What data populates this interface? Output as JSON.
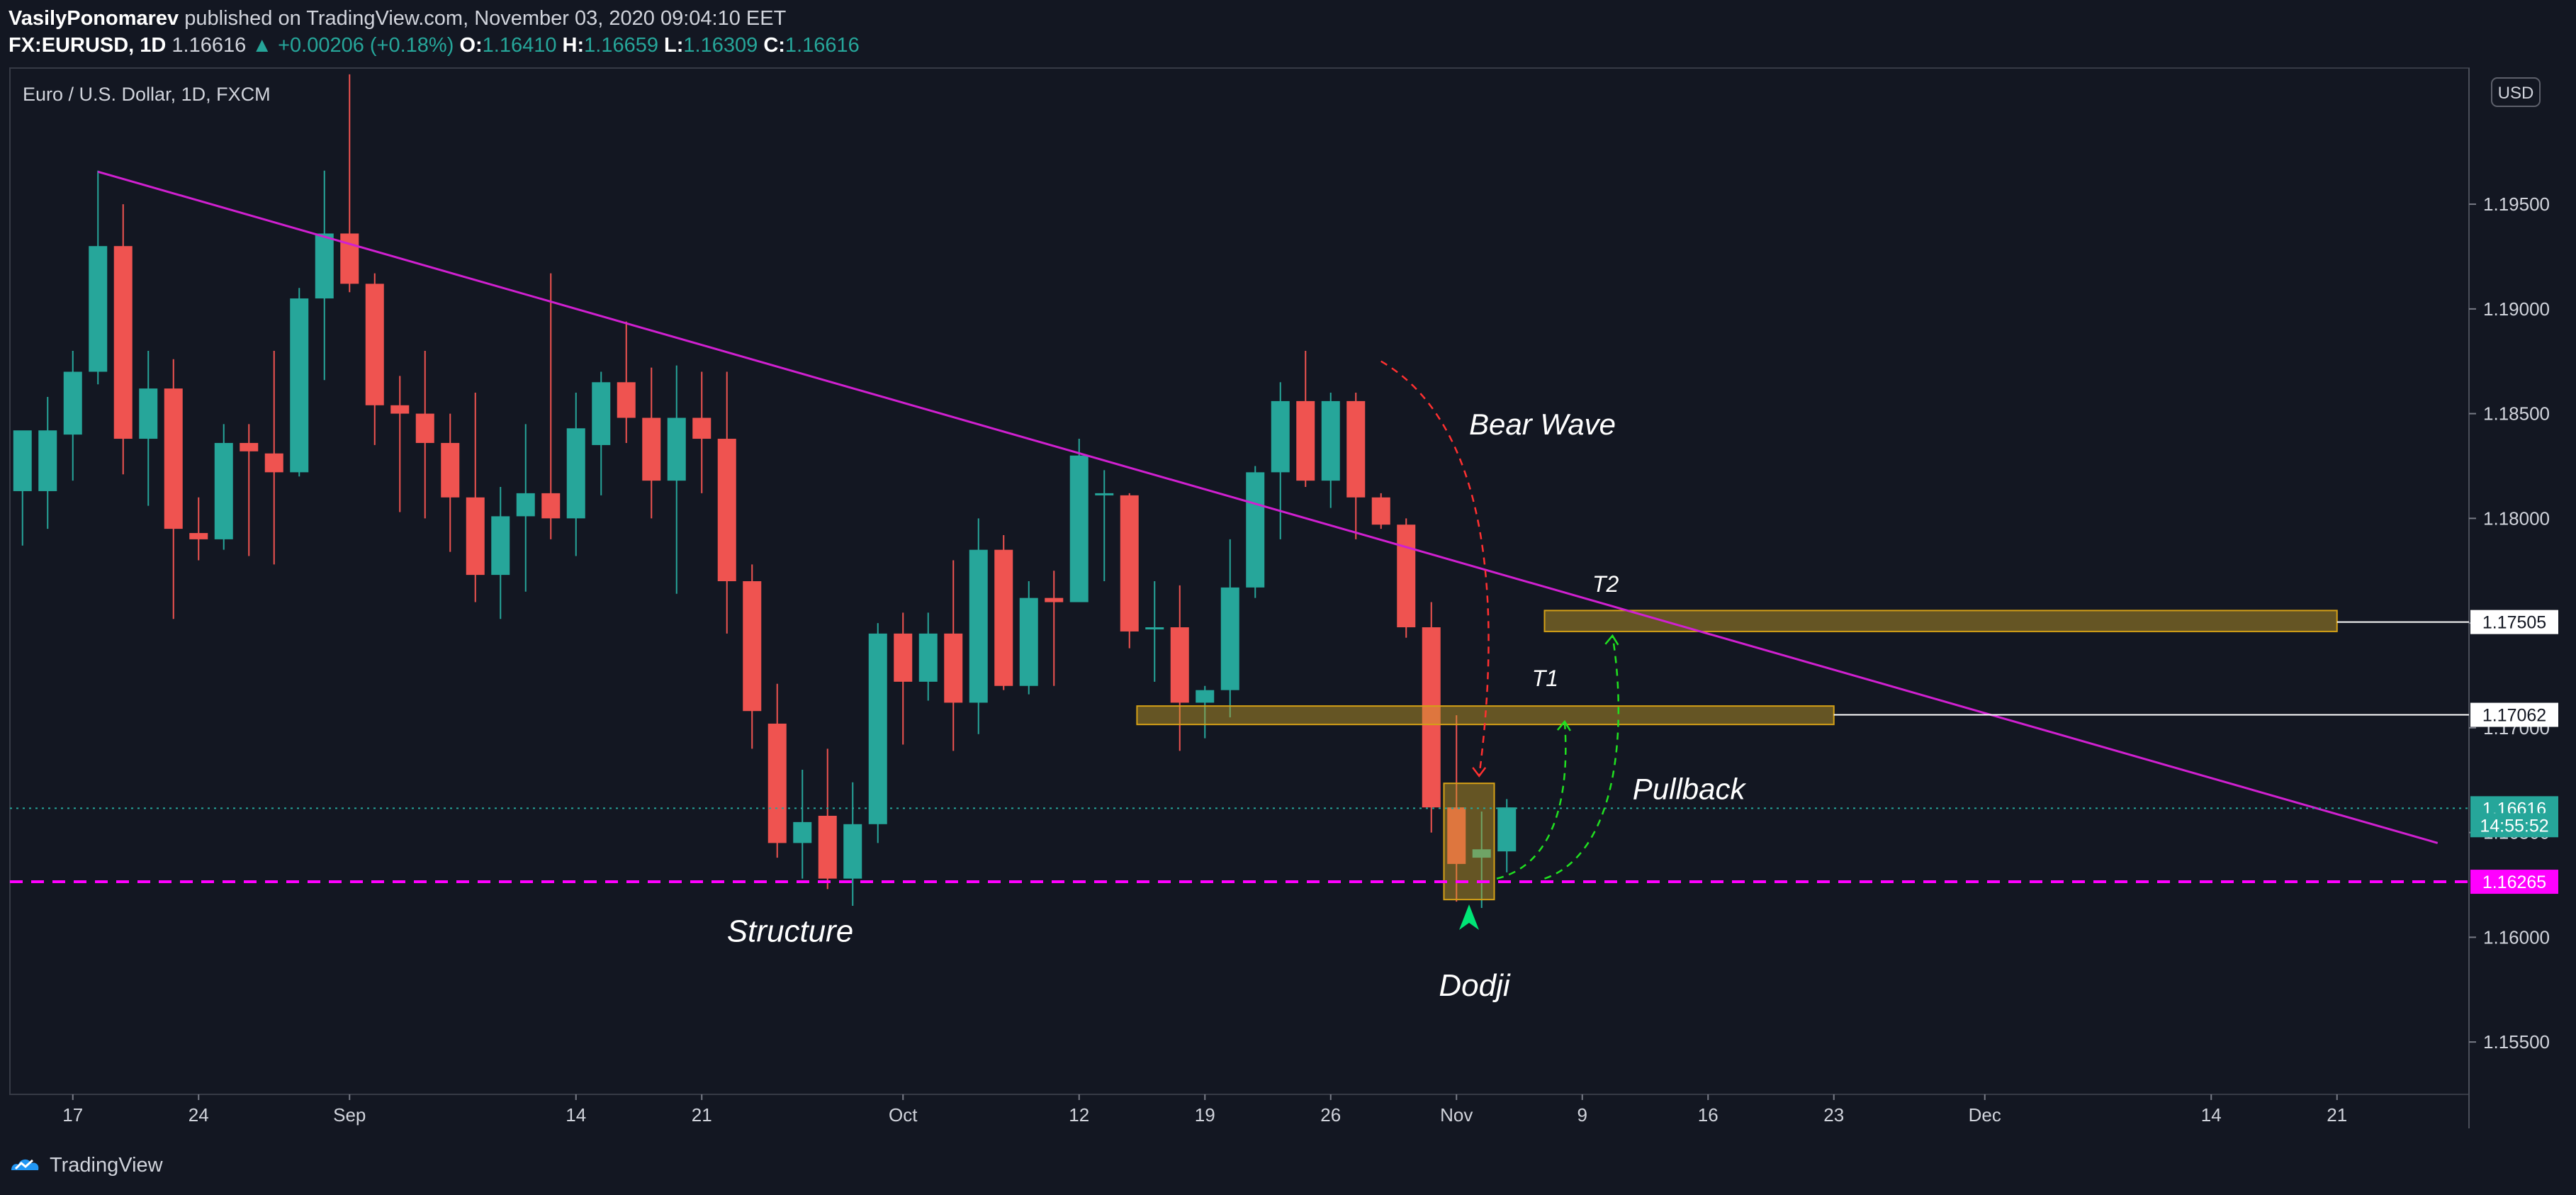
{
  "header": {
    "author": "VasilyPonomarev",
    "published_text": "published on TradingView.com, November 03, 2020 09:04:10 EET",
    "symbol": "FX:EURUSD, 1D",
    "last": "1.16616",
    "change": "▲ +0.00206 (+0.18%)",
    "o_label": "O:",
    "o_value": "1.16410",
    "h_label": "H:",
    "h_value": "1.16659",
    "l_label": "L:",
    "l_value": "1.16309",
    "c_label": "C:",
    "c_value": "1.16616"
  },
  "footer": {
    "brand": "TradingView"
  },
  "colors": {
    "background": "#131722",
    "up": "#26a69a",
    "down": "#ef5350",
    "trendline": "#d020d0",
    "support": "#ff00ff",
    "zone": "#c9a227",
    "bear_arrow": "#ff3030",
    "pullback_arrow": "#20e020",
    "dodji_arrow": "#00e676"
  },
  "chart_data": {
    "type": "candlestick",
    "title": "Euro / U.S. Dollar, 1D, FXCM",
    "currency": "USD",
    "ylim": [
      1.1525,
      1.2015
    ],
    "y_ticks": [
      "1.15500",
      "1.16000",
      "1.16500",
      "1.17000",
      "1.17500",
      "1.18000",
      "1.18500",
      "1.19000",
      "1.19500"
    ],
    "x_ticks": [
      {
        "i": 2,
        "label": "17"
      },
      {
        "i": 7,
        "label": "24"
      },
      {
        "i": 13,
        "label": "Sep"
      },
      {
        "i": 22,
        "label": "14"
      },
      {
        "i": 27,
        "label": "21"
      },
      {
        "i": 35,
        "label": "Oct"
      },
      {
        "i": 42,
        "label": "12"
      },
      {
        "i": 47,
        "label": "19"
      },
      {
        "i": 52,
        "label": "26"
      },
      {
        "i": 57,
        "label": "Nov"
      },
      {
        "i": 62,
        "label": "9"
      },
      {
        "i": 67,
        "label": "16"
      },
      {
        "i": 72,
        "label": "23"
      },
      {
        "i": 78,
        "label": "Dec"
      },
      {
        "i": 87,
        "label": "14"
      },
      {
        "i": 92,
        "label": "21"
      }
    ],
    "candles": [
      {
        "o": 1.1813,
        "h": 1.1841,
        "l": 1.1787,
        "c": 1.1842
      },
      {
        "o": 1.1813,
        "h": 1.1858,
        "l": 1.1795,
        "c": 1.1842
      },
      {
        "o": 1.184,
        "h": 1.188,
        "l": 1.1818,
        "c": 1.187
      },
      {
        "o": 1.187,
        "h": 1.1966,
        "l": 1.1864,
        "c": 1.193
      },
      {
        "o": 1.193,
        "h": 1.195,
        "l": 1.1821,
        "c": 1.1838
      },
      {
        "o": 1.1838,
        "h": 1.188,
        "l": 1.1806,
        "c": 1.1862
      },
      {
        "o": 1.1862,
        "h": 1.1876,
        "l": 1.1752,
        "c": 1.1795
      },
      {
        "o": 1.1793,
        "h": 1.181,
        "l": 1.178,
        "c": 1.179
      },
      {
        "o": 1.179,
        "h": 1.1845,
        "l": 1.1785,
        "c": 1.1836
      },
      {
        "o": 1.1836,
        "h": 1.1845,
        "l": 1.1782,
        "c": 1.1832
      },
      {
        "o": 1.1831,
        "h": 1.188,
        "l": 1.1778,
        "c": 1.1822
      },
      {
        "o": 1.1822,
        "h": 1.191,
        "l": 1.182,
        "c": 1.1905
      },
      {
        "o": 1.1905,
        "h": 1.1966,
        "l": 1.1866,
        "c": 1.1936
      },
      {
        "o": 1.1936,
        "h": 1.2012,
        "l": 1.1908,
        "c": 1.1912
      },
      {
        "o": 1.1912,
        "h": 1.1917,
        "l": 1.1835,
        "c": 1.1854
      },
      {
        "o": 1.1854,
        "h": 1.1868,
        "l": 1.1803,
        "c": 1.185
      },
      {
        "o": 1.185,
        "h": 1.188,
        "l": 1.18,
        "c": 1.1836
      },
      {
        "o": 1.1836,
        "h": 1.185,
        "l": 1.1784,
        "c": 1.181
      },
      {
        "o": 1.181,
        "h": 1.186,
        "l": 1.176,
        "c": 1.1773
      },
      {
        "o": 1.1773,
        "h": 1.1815,
        "l": 1.1752,
        "c": 1.1801
      },
      {
        "o": 1.1801,
        "h": 1.1845,
        "l": 1.1765,
        "c": 1.1812
      },
      {
        "o": 1.1812,
        "h": 1.1917,
        "l": 1.179,
        "c": 1.18
      },
      {
        "o": 1.18,
        "h": 1.186,
        "l": 1.1782,
        "c": 1.1843
      },
      {
        "o": 1.1835,
        "h": 1.187,
        "l": 1.1811,
        "c": 1.1865
      },
      {
        "o": 1.1865,
        "h": 1.1894,
        "l": 1.1836,
        "c": 1.1848
      },
      {
        "o": 1.1848,
        "h": 1.1872,
        "l": 1.18,
        "c": 1.1818
      },
      {
        "o": 1.1818,
        "h": 1.1873,
        "l": 1.1764,
        "c": 1.1848
      },
      {
        "o": 1.1848,
        "h": 1.187,
        "l": 1.1812,
        "c": 1.1838
      },
      {
        "o": 1.1838,
        "h": 1.187,
        "l": 1.1745,
        "c": 1.177
      },
      {
        "o": 1.177,
        "h": 1.1778,
        "l": 1.169,
        "c": 1.1708
      },
      {
        "o": 1.1702,
        "h": 1.1721,
        "l": 1.1638,
        "c": 1.1645
      },
      {
        "o": 1.1645,
        "h": 1.168,
        "l": 1.1628,
        "c": 1.1655
      },
      {
        "o": 1.1658,
        "h": 1.169,
        "l": 1.1623,
        "c": 1.1628
      },
      {
        "o": 1.1628,
        "h": 1.1674,
        "l": 1.1615,
        "c": 1.1654
      },
      {
        "o": 1.1654,
        "h": 1.175,
        "l": 1.1645,
        "c": 1.1745
      },
      {
        "o": 1.1745,
        "h": 1.1755,
        "l": 1.1692,
        "c": 1.1722
      },
      {
        "o": 1.1722,
        "h": 1.1755,
        "l": 1.1713,
        "c": 1.1745
      },
      {
        "o": 1.1745,
        "h": 1.178,
        "l": 1.1689,
        "c": 1.1712
      },
      {
        "o": 1.1712,
        "h": 1.18,
        "l": 1.1697,
        "c": 1.1785
      },
      {
        "o": 1.1785,
        "h": 1.1792,
        "l": 1.1718,
        "c": 1.172
      },
      {
        "o": 1.172,
        "h": 1.177,
        "l": 1.1716,
        "c": 1.1762
      },
      {
        "o": 1.1762,
        "h": 1.1775,
        "l": 1.172,
        "c": 1.176
      },
      {
        "o": 1.176,
        "h": 1.1838,
        "l": 1.176,
        "c": 1.183
      },
      {
        "o": 1.1811,
        "h": 1.1823,
        "l": 1.177,
        "c": 1.1812
      },
      {
        "o": 1.1811,
        "h": 1.1812,
        "l": 1.1738,
        "c": 1.1746
      },
      {
        "o": 1.1748,
        "h": 1.177,
        "l": 1.1722,
        "c": 1.1748
      },
      {
        "o": 1.1748,
        "h": 1.1768,
        "l": 1.1689,
        "c": 1.1712
      },
      {
        "o": 1.1712,
        "h": 1.172,
        "l": 1.1695,
        "c": 1.1718
      },
      {
        "o": 1.1718,
        "h": 1.179,
        "l": 1.1705,
        "c": 1.1767
      },
      {
        "o": 1.1767,
        "h": 1.1825,
        "l": 1.1762,
        "c": 1.1822
      },
      {
        "o": 1.1822,
        "h": 1.1865,
        "l": 1.179,
        "c": 1.1856
      },
      {
        "o": 1.1856,
        "h": 1.188,
        "l": 1.1815,
        "c": 1.1818
      },
      {
        "o": 1.1818,
        "h": 1.186,
        "l": 1.1805,
        "c": 1.1856
      },
      {
        "o": 1.1856,
        "h": 1.186,
        "l": 1.179,
        "c": 1.181
      },
      {
        "o": 1.181,
        "h": 1.1812,
        "l": 1.1795,
        "c": 1.1797
      },
      {
        "o": 1.1797,
        "h": 1.18,
        "l": 1.1743,
        "c": 1.1748
      },
      {
        "o": 1.1748,
        "h": 1.176,
        "l": 1.165,
        "c": 1.1662
      },
      {
        "o": 1.1662,
        "h": 1.1706,
        "l": 1.1617,
        "c": 1.1635
      },
      {
        "o": 1.1638,
        "h": 1.166,
        "l": 1.1614,
        "c": 1.1642
      },
      {
        "o": 1.1641,
        "h": 1.1666,
        "l": 1.1631,
        "c": 1.1662
      }
    ],
    "trendline": {
      "from": [
        3,
        1.19655
      ],
      "to": [
        96,
        1.1645
      ]
    },
    "support": {
      "value": 1.16265
    },
    "price_labels": [
      {
        "value": 1.17505,
        "label": "1.17505",
        "style": "white"
      },
      {
        "value": 1.17062,
        "label": "1.17062",
        "style": "white"
      },
      {
        "value": 1.16616,
        "label": "1.16616",
        "style": "green"
      },
      {
        "value": 1.16535,
        "label": "14:55:52",
        "style": "green"
      },
      {
        "value": 1.16265,
        "label": "1.16265",
        "style": "magenta"
      }
    ],
    "zones": [
      {
        "x0": 60.5,
        "x1": 92.0,
        "y0": 1.1746,
        "y1": 1.1756
      },
      {
        "x0": 44.3,
        "x1": 72.0,
        "y0": 1.17016,
        "y1": 1.17104
      },
      {
        "x0": 56.5,
        "x1": 58.5,
        "y0": 1.1618,
        "y1": 1.16735
      }
    ],
    "annotations": [
      {
        "text": "Bear Wave",
        "x": 57.5,
        "y": 1.184
      },
      {
        "text": "T2",
        "x": 62.4,
        "y": 1.1765
      },
      {
        "text": "T1",
        "x": 60.0,
        "y": 1.172
      },
      {
        "text": "Pullback",
        "x": 64.0,
        "y": 1.1666
      },
      {
        "text": "Structure",
        "x": 28.0,
        "y": 1.1598
      },
      {
        "text": "Dodji",
        "x": 56.3,
        "y": 1.1572
      }
    ]
  }
}
